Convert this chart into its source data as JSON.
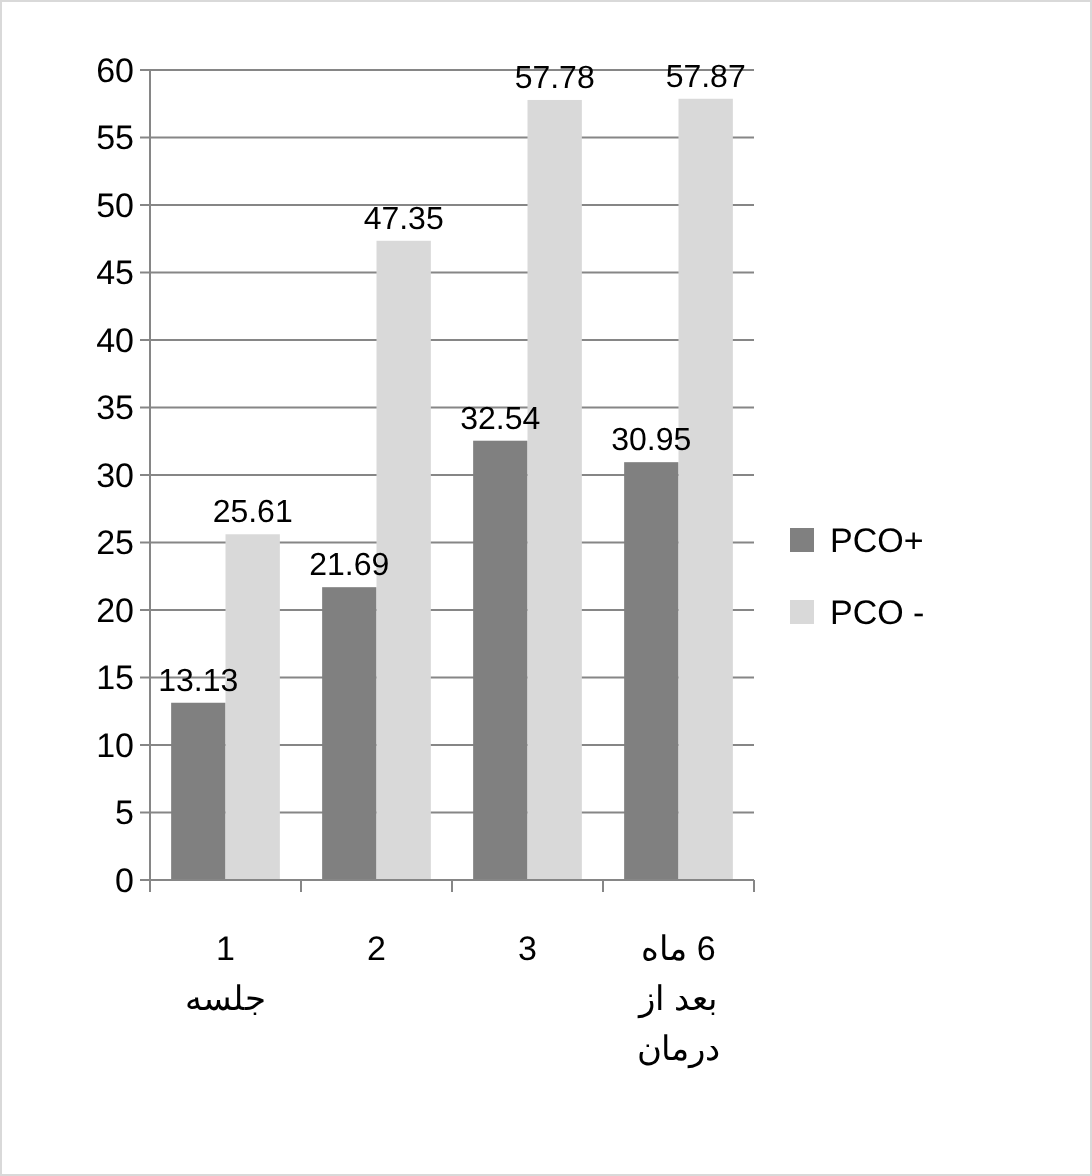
{
  "chart_data": {
    "type": "bar",
    "categories": [
      "1 جلسه",
      "2",
      "3",
      "6 ماه بعد از درمان"
    ],
    "series": [
      {
        "name": "PCO+",
        "color": "#808080",
        "values": [
          13.13,
          21.69,
          32.54,
          30.95
        ]
      },
      {
        "name": "PCO -",
        "color": "#d9d9d9",
        "values": [
          25.61,
          47.35,
          57.78,
          57.87
        ]
      }
    ],
    "ylim": [
      0,
      60
    ],
    "yticks": [
      0,
      5,
      10,
      15,
      20,
      25,
      30,
      35,
      40,
      45,
      50,
      55,
      60
    ],
    "grid": "y",
    "legend": "right",
    "data_labels": true
  }
}
